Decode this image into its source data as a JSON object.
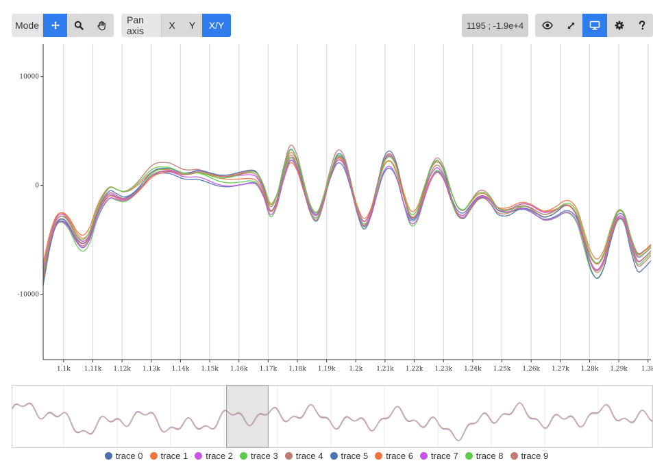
{
  "toolbar": {
    "mode_label": "Mode",
    "pan_axis_label": "Pan axis",
    "pan_x": "X",
    "pan_y": "Y",
    "pan_xy": "X/Y",
    "coordinate_readout": "1195 ; -1.9e+4",
    "mode_buttons": [
      {
        "icon": "move-icon",
        "active": true
      },
      {
        "icon": "zoom-icon",
        "active": false
      },
      {
        "icon": "hand-icon",
        "active": false
      }
    ],
    "view_buttons": [
      {
        "icon": "eye-icon",
        "active": false
      },
      {
        "icon": "expand-icon",
        "active": false
      },
      {
        "icon": "monitor-icon",
        "active": true
      },
      {
        "icon": "gear-icon",
        "active": false
      },
      {
        "icon": "help-icon",
        "active": false
      }
    ],
    "active_color": "#2f7ded"
  },
  "chart_data": {
    "type": "line",
    "x_ticks": [
      "1.1k",
      "1.11k",
      "1.12k",
      "1.13k",
      "1.14k",
      "1.15k",
      "1.16k",
      "1.17k",
      "1.18k",
      "1.19k",
      "1.2k",
      "1.21k",
      "1.22k",
      "1.23k",
      "1.24k",
      "1.25k",
      "1.26k",
      "1.27k",
      "1.28k",
      "1.29k",
      "1.3k"
    ],
    "y_ticks": [
      "10000",
      "0",
      "-10000"
    ],
    "xlim": [
      1093,
      1301
    ],
    "ylim": [
      -16000,
      13000
    ],
    "grid": "vertical",
    "base_points": [
      [
        1093,
        -8200
      ],
      [
        1095,
        -5200
      ],
      [
        1097,
        -3300
      ],
      [
        1099,
        -3000
      ],
      [
        1101,
        -3700
      ],
      [
        1103,
        -4900
      ],
      [
        1105,
        -5400
      ],
      [
        1107,
        -4600
      ],
      [
        1109,
        -2700
      ],
      [
        1111,
        -1400
      ],
      [
        1113,
        -700
      ],
      [
        1115,
        -900
      ],
      [
        1117,
        -1100
      ],
      [
        1119,
        -900
      ],
      [
        1121,
        -400
      ],
      [
        1123,
        300
      ],
      [
        1125,
        1000
      ],
      [
        1127,
        1400
      ],
      [
        1129,
        1500
      ],
      [
        1131,
        1500
      ],
      [
        1133,
        1300
      ],
      [
        1135,
        1100
      ],
      [
        1137,
        1100
      ],
      [
        1139,
        1200
      ],
      [
        1141,
        1100
      ],
      [
        1143,
        900
      ],
      [
        1145,
        700
      ],
      [
        1147,
        600
      ],
      [
        1149,
        600
      ],
      [
        1151,
        700
      ],
      [
        1153,
        800
      ],
      [
        1155,
        900
      ],
      [
        1157,
        700
      ],
      [
        1159,
        -500
      ],
      [
        1161,
        -2300
      ],
      [
        1163,
        -1400
      ],
      [
        1165,
        1000
      ],
      [
        1167,
        2800
      ],
      [
        1169,
        2000
      ],
      [
        1171,
        -200
      ],
      [
        1173,
        -2200
      ],
      [
        1175,
        -2800
      ],
      [
        1177,
        -1300
      ],
      [
        1179,
        1000
      ],
      [
        1181,
        2600
      ],
      [
        1183,
        2300
      ],
      [
        1185,
        300
      ],
      [
        1187,
        -2200
      ],
      [
        1189,
        -3600
      ],
      [
        1191,
        -2700
      ],
      [
        1193,
        -200
      ],
      [
        1195,
        2000
      ],
      [
        1197,
        2500
      ],
      [
        1199,
        1300
      ],
      [
        1201,
        -1200
      ],
      [
        1203,
        -3000
      ],
      [
        1205,
        -2700
      ],
      [
        1207,
        -800
      ],
      [
        1209,
        1000
      ],
      [
        1211,
        1800
      ],
      [
        1213,
        1000
      ],
      [
        1215,
        -900
      ],
      [
        1217,
        -2400
      ],
      [
        1219,
        -2700
      ],
      [
        1221,
        -1900
      ],
      [
        1223,
        -1100
      ],
      [
        1225,
        -900
      ],
      [
        1227,
        -1400
      ],
      [
        1229,
        -2200
      ],
      [
        1231,
        -2400
      ],
      [
        1233,
        -2300
      ],
      [
        1235,
        -2000
      ],
      [
        1237,
        -1900
      ],
      [
        1239,
        -2100
      ],
      [
        1241,
        -2500
      ],
      [
        1243,
        -2800
      ],
      [
        1245,
        -2700
      ],
      [
        1247,
        -2400
      ],
      [
        1249,
        -2000
      ],
      [
        1251,
        -2100
      ],
      [
        1253,
        -3000
      ],
      [
        1255,
        -5100
      ],
      [
        1257,
        -7100
      ],
      [
        1259,
        -7800
      ],
      [
        1261,
        -6800
      ],
      [
        1263,
        -4600
      ],
      [
        1265,
        -2900
      ],
      [
        1267,
        -3100
      ],
      [
        1269,
        -5300
      ],
      [
        1271,
        -6900
      ],
      [
        1273,
        -6600
      ],
      [
        1275,
        -6000
      ]
    ],
    "series": [
      {
        "name": "trace 0",
        "color": "#4c72b0"
      },
      {
        "name": "trace 1",
        "color": "#ef7540"
      },
      {
        "name": "trace 2",
        "color": "#c755e8"
      },
      {
        "name": "trace 3",
        "color": "#5fcb4a"
      },
      {
        "name": "trace 4",
        "color": "#c07b73"
      },
      {
        "name": "trace 5",
        "color": "#4c72b0"
      },
      {
        "name": "trace 6",
        "color": "#ef7540"
      },
      {
        "name": "trace 7",
        "color": "#c755e8"
      },
      {
        "name": "trace 8",
        "color": "#5fcb4a"
      },
      {
        "name": "trace 9",
        "color": "#c07b73"
      }
    ],
    "overview_range": [
      0.335,
      0.4
    ]
  }
}
